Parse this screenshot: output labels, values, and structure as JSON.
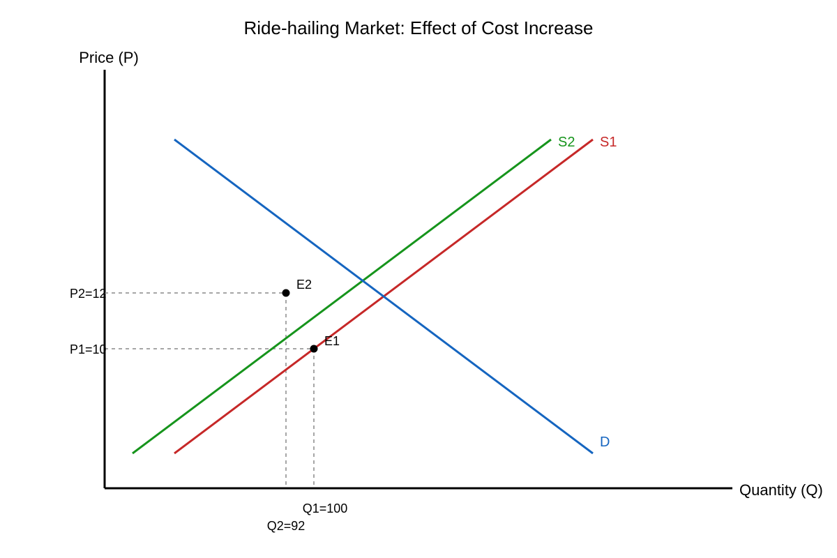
{
  "title": "Ride-hailing Market: Effect of Cost Increase",
  "axes": {
    "y_label": "Price (P)",
    "x_label": "Quantity (Q)"
  },
  "curves": {
    "demand": {
      "label": "D",
      "color": "#1565c0"
    },
    "supply_1": {
      "label": "S1",
      "color": "#c62828"
    },
    "supply_2": {
      "label": "S2",
      "color": "#16941c"
    }
  },
  "points": {
    "e1": {
      "label": "E1",
      "price_label": "P1=10",
      "quantity_label": "Q1=100"
    },
    "e2": {
      "label": "E2",
      "price_label": "P2=12",
      "quantity_label": "Q2=92"
    }
  }
}
